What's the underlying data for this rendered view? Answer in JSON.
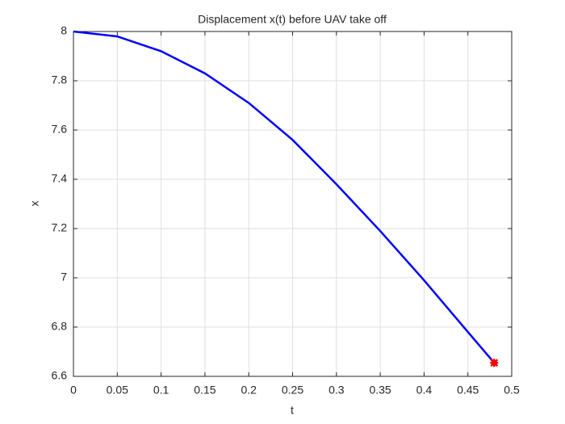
{
  "chart_data": {
    "type": "line",
    "title": "Displacement x(t) before UAV take off",
    "xlabel": "t",
    "ylabel": "x",
    "x": [
      0,
      0.05,
      0.1,
      0.15,
      0.2,
      0.25,
      0.3,
      0.35,
      0.4,
      0.45,
      0.48
    ],
    "series": [
      {
        "color": "#0000ff",
        "values": [
          8,
          7.98,
          7.92,
          7.83,
          7.71,
          7.56,
          7.38,
          7.19,
          6.99,
          6.78,
          6.655
        ]
      }
    ],
    "points": {
      "x": [
        0.48
      ],
      "y": [
        6.655
      ],
      "color": "#ff0000"
    },
    "xlim": [
      0,
      0.5
    ],
    "ylim": [
      6.6,
      8
    ],
    "xticks": [
      0,
      0.05,
      0.1,
      0.15,
      0.2,
      0.25,
      0.3,
      0.35,
      0.4,
      0.45,
      0.5
    ],
    "yticks": [
      6.6,
      6.8,
      7,
      7.2,
      7.4,
      7.6,
      7.8,
      8
    ],
    "grid": true
  }
}
